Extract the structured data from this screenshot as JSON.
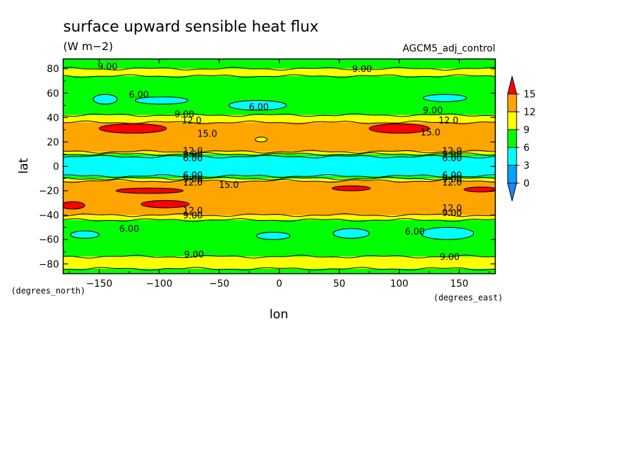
{
  "chart_data": {
    "type": "heatmap",
    "title": "surface upward sensible heat flux",
    "units": "(W m−2)",
    "dataset_label": "AGCM5_adj_control",
    "xlabel": "lon",
    "ylabel": "lat",
    "x_units": "(degrees_east)",
    "y_units": "(degrees_north)",
    "xlim": [
      -180,
      180
    ],
    "ylim": [
      -88,
      88
    ],
    "x_ticks": [
      -150,
      -100,
      -50,
      0,
      50,
      100,
      150
    ],
    "y_ticks": [
      80,
      60,
      40,
      20,
      0,
      -20,
      -40,
      -60,
      -80
    ],
    "grid": false,
    "colorbar": {
      "placement": "right",
      "levels": [
        0,
        3,
        6,
        9,
        12,
        15
      ],
      "labels": [
        "15",
        "12",
        "9",
        "6",
        "3",
        "0"
      ],
      "colors": {
        "below_0": "#1f82ff",
        "0-3": "#00a5ff",
        "3-6": "#00ffff",
        "6-9": "#00ff00",
        "9-12": "#ffff00",
        "12-15": "#ffa500",
        "above_15": "#ff0000"
      }
    },
    "zonal_bands": [
      {
        "lat": [
          80,
          88
        ],
        "level": "6-9"
      },
      {
        "lat": [
          74,
          80
        ],
        "level": "9-12"
      },
      {
        "lat": [
          42,
          74
        ],
        "level": "6-9"
      },
      {
        "lat": [
          36,
          42
        ],
        "level": "9-12"
      },
      {
        "lat": [
          12,
          36
        ],
        "level": "12-15"
      },
      {
        "lat": [
          10,
          12
        ],
        "level": "9-12"
      },
      {
        "lat": [
          8,
          10
        ],
        "level": "6-9"
      },
      {
        "lat": [
          -8,
          8
        ],
        "level": "3-6"
      },
      {
        "lat": [
          -10,
          -8
        ],
        "level": "6-9"
      },
      {
        "lat": [
          -12,
          -10
        ],
        "level": "9-12"
      },
      {
        "lat": [
          -40,
          -12
        ],
        "level": "12-15"
      },
      {
        "lat": [
          -44,
          -40
        ],
        "level": "9-12"
      },
      {
        "lat": [
          -74,
          -44
        ],
        "level": "6-9"
      },
      {
        "lat": [
          -84,
          -74
        ],
        "level": "9-12"
      },
      {
        "lat": [
          -88,
          -84
        ],
        "level": "6-9"
      }
    ],
    "patches": [
      {
        "lon": -122,
        "lat": 31,
        "rlon": 28,
        "rlat": 3.8,
        "level": "above_15"
      },
      {
        "lon": 100,
        "lat": 31,
        "rlon": 25,
        "rlat": 3.8,
        "level": "above_15"
      },
      {
        "lon": -145,
        "lat": 55,
        "rlon": 10,
        "rlat": 4,
        "level": "3-6"
      },
      {
        "lon": -98,
        "lat": 54,
        "rlon": 22,
        "rlat": 3,
        "level": "3-6"
      },
      {
        "lon": -18,
        "lat": 50,
        "rlon": 24,
        "rlat": 4,
        "level": "3-6"
      },
      {
        "lon": 138,
        "lat": 56,
        "rlon": 18,
        "rlat": 3,
        "level": "3-6"
      },
      {
        "lon": -108,
        "lat": -20,
        "rlon": 28,
        "rlat": 2.2,
        "level": "above_15"
      },
      {
        "lon": 60,
        "lat": -18,
        "rlon": 16,
        "rlat": 2,
        "level": "above_15"
      },
      {
        "lon": 168,
        "lat": -19,
        "rlon": 14,
        "rlat": 2,
        "level": "above_15"
      },
      {
        "lon": -172,
        "lat": -32,
        "rlon": 10,
        "rlat": 3,
        "level": "above_15"
      },
      {
        "lon": -95,
        "lat": -31,
        "rlon": 20,
        "rlat": 3,
        "level": "above_15"
      },
      {
        "lon": -162,
        "lat": -56,
        "rlon": 12,
        "rlat": 3,
        "level": "3-6"
      },
      {
        "lon": -5,
        "lat": -57,
        "rlon": 14,
        "rlat": 3,
        "level": "3-6"
      },
      {
        "lon": 60,
        "lat": -55,
        "rlon": 15,
        "rlat": 4,
        "level": "3-6"
      },
      {
        "lon": 140,
        "lat": -55,
        "rlon": 22,
        "rlat": 5,
        "level": "3-6"
      },
      {
        "lon": -15,
        "lat": 22,
        "rlon": 5,
        "rlat": 2,
        "level": "9-12"
      }
    ],
    "contour_labels": [
      {
        "text": "9.00",
        "lon": -143,
        "lat": 82
      },
      {
        "text": "9.00",
        "lon": 69,
        "lat": 80
      },
      {
        "text": "6.00",
        "lon": -117,
        "lat": 59
      },
      {
        "text": "6.00",
        "lon": -17,
        "lat": 49
      },
      {
        "text": "9.00",
        "lon": -79,
        "lat": 43
      },
      {
        "text": "12.0",
        "lon": -73,
        "lat": 38
      },
      {
        "text": "9.00",
        "lon": 128,
        "lat": 46
      },
      {
        "text": "12.0",
        "lon": 141,
        "lat": 38
      },
      {
        "text": "15.0",
        "lon": -60,
        "lat": 27
      },
      {
        "text": "15.0",
        "lon": 126,
        "lat": 28
      },
      {
        "text": "12.0",
        "lon": -72,
        "lat": 13
      },
      {
        "text": "9.00",
        "lon": -72,
        "lat": 10
      },
      {
        "text": "6.00",
        "lon": -72,
        "lat": 7
      },
      {
        "text": "12.0",
        "lon": 144,
        "lat": 13
      },
      {
        "text": "9.00",
        "lon": 144,
        "lat": 10
      },
      {
        "text": "6.00",
        "lon": 144,
        "lat": 7
      },
      {
        "text": "6.00",
        "lon": -72,
        "lat": -7
      },
      {
        "text": "9.00",
        "lon": -72,
        "lat": -10
      },
      {
        "text": "12.0",
        "lon": -72,
        "lat": -13
      },
      {
        "text": "15.0",
        "lon": -42,
        "lat": -15
      },
      {
        "text": "6.00",
        "lon": 144,
        "lat": -7
      },
      {
        "text": "9.00",
        "lon": 144,
        "lat": -10
      },
      {
        "text": "12.0",
        "lon": 144,
        "lat": -13
      },
      {
        "text": "12.0",
        "lon": -72,
        "lat": -36
      },
      {
        "text": "9.00",
        "lon": -72,
        "lat": -40
      },
      {
        "text": "12.0",
        "lon": 144,
        "lat": -34
      },
      {
        "text": "9.00",
        "lon": 144,
        "lat": -38
      },
      {
        "text": "6.00",
        "lon": -125,
        "lat": -51
      },
      {
        "text": "6.00",
        "lon": 113,
        "lat": -53
      },
      {
        "text": "9.00",
        "lon": -71,
        "lat": -72
      },
      {
        "text": "9.00",
        "lon": 142,
        "lat": -74
      }
    ]
  }
}
